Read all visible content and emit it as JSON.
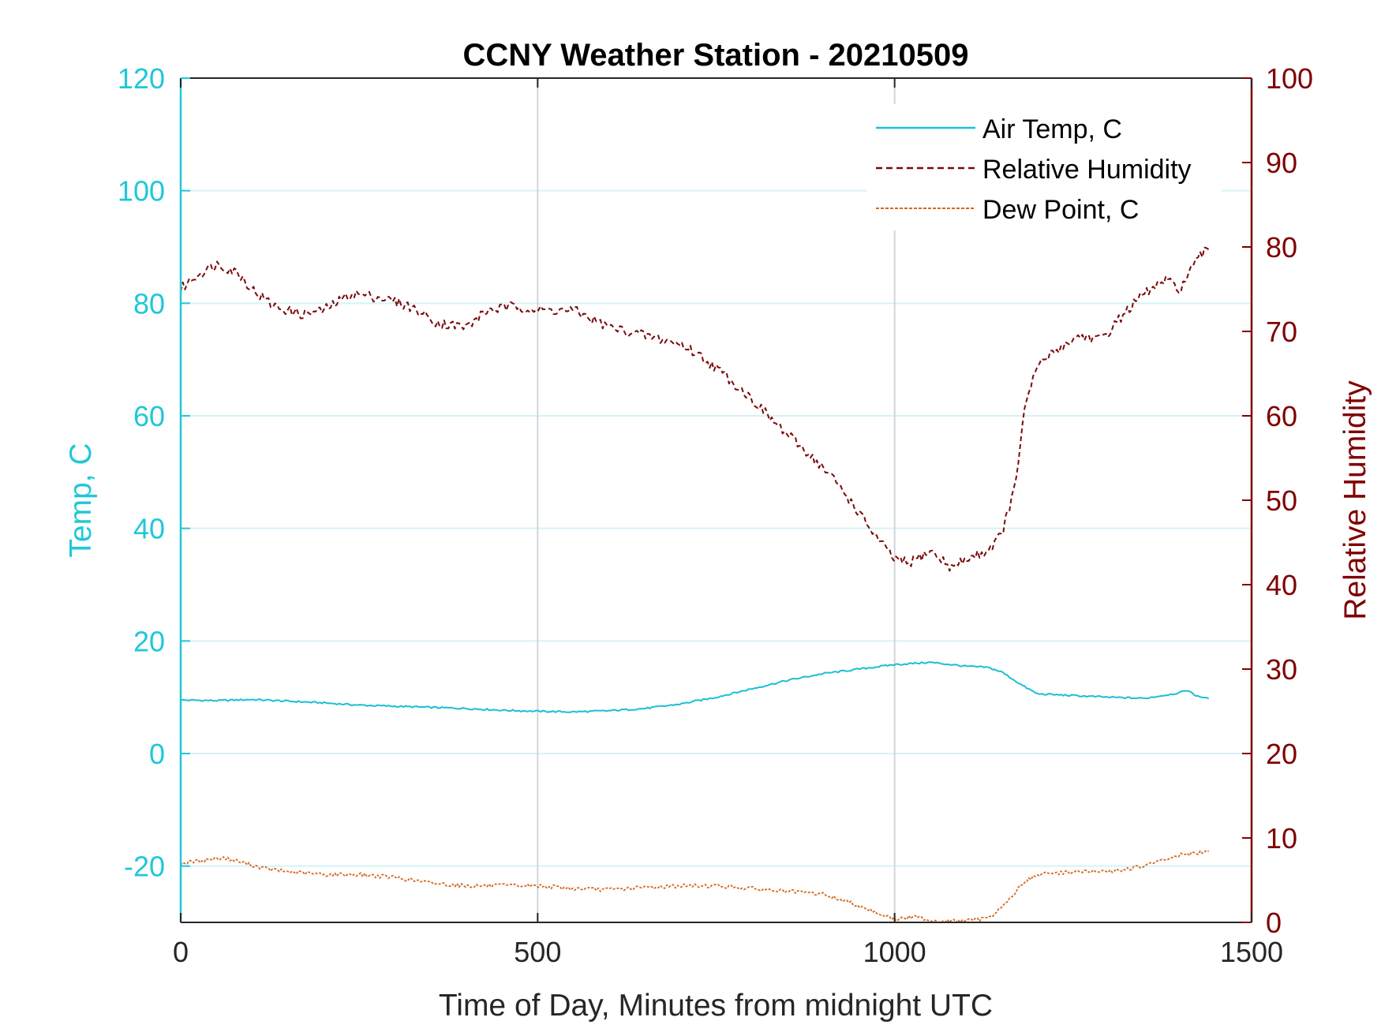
{
  "chart_data": {
    "type": "line",
    "title": "CCNY Weather Station - 20210509",
    "xlabel": "Time of Day, Minutes from midnight UTC",
    "ylabel_left": "Temp, C",
    "ylabel_right": "Relative Humidity",
    "xlim": [
      0,
      1500
    ],
    "ylim_left": [
      -30,
      120
    ],
    "ylim_right": [
      0,
      100
    ],
    "xticks": [
      "0",
      "500",
      "1000",
      "1500"
    ],
    "yticks_left": [
      "-20",
      "0",
      "20",
      "40",
      "60",
      "80",
      "100",
      "120"
    ],
    "yticks_right": [
      "0",
      "10",
      "20",
      "30",
      "40",
      "50",
      "60",
      "70",
      "80",
      "90",
      "100"
    ],
    "grid": true,
    "legend_position": "top-right",
    "colors": {
      "left_axis": "#1ec8d8",
      "right_axis": "#800000",
      "air_temp": "#1bbfd4",
      "relative_humidity": "#7a0a0a",
      "dew_point": "#d9651e",
      "grid_h": "#d5f3f7",
      "grid_v": "#cfd6de"
    },
    "series": [
      {
        "name": "Air Temp, C",
        "axis": "left",
        "style": "solid",
        "x": [
          0,
          50,
          100,
          150,
          200,
          250,
          300,
          350,
          400,
          450,
          500,
          550,
          600,
          650,
          700,
          750,
          800,
          850,
          900,
          950,
          1000,
          1050,
          1100,
          1130,
          1150,
          1180,
          1200,
          1250,
          1300,
          1350,
          1380,
          1400,
          1410,
          1420,
          1440
        ],
        "y": [
          9.5,
          9.4,
          9.6,
          9.3,
          9.0,
          8.6,
          8.4,
          8.2,
          8.0,
          7.7,
          7.5,
          7.4,
          7.6,
          8.0,
          8.8,
          10.0,
          11.5,
          13.0,
          14.2,
          15.0,
          15.8,
          16.2,
          15.5,
          15.3,
          14.5,
          12.0,
          10.6,
          10.3,
          10.0,
          9.8,
          10.4,
          10.8,
          11.3,
          10.4,
          9.7
        ]
      },
      {
        "name": "Relative Humidity",
        "axis": "right",
        "style": "dashed",
        "x": [
          0,
          20,
          50,
          80,
          100,
          130,
          170,
          200,
          240,
          280,
          320,
          360,
          400,
          430,
          470,
          500,
          550,
          600,
          650,
          700,
          730,
          760,
          800,
          840,
          880,
          920,
          950,
          980,
          1000,
          1020,
          1050,
          1080,
          1100,
          1130,
          1150,
          1170,
          1180,
          1200,
          1230,
          1260,
          1290,
          1320,
          1350,
          1380,
          1400,
          1420,
          1440
        ],
        "y": [
          75,
          76.5,
          78,
          77,
          75,
          73,
          72,
          72.5,
          74.5,
          74,
          73,
          71,
          70.5,
          72.5,
          73,
          72.5,
          72.5,
          70.5,
          69.5,
          68.5,
          67,
          65,
          62,
          58.5,
          55.5,
          52,
          48.5,
          45,
          43,
          42.5,
          44,
          42,
          43,
          44,
          46,
          52,
          60,
          66,
          68,
          69.5,
          69,
          72,
          74.5,
          76,
          75,
          78,
          80
        ]
      },
      {
        "name": "Dew Point, C",
        "axis": "left",
        "style": "dotted",
        "x": [
          0,
          30,
          60,
          90,
          120,
          150,
          200,
          250,
          300,
          350,
          400,
          450,
          500,
          550,
          600,
          650,
          700,
          750,
          800,
          850,
          900,
          950,
          980,
          1000,
          1030,
          1060,
          1090,
          1120,
          1140,
          1160,
          1180,
          1200,
          1250,
          1300,
          1350,
          1400,
          1440
        ],
        "y": [
          -19.5,
          -19,
          -18.5,
          -19.5,
          -20.5,
          -21,
          -21.5,
          -21.5,
          -22,
          -23,
          -23.5,
          -23.5,
          -23.5,
          -24,
          -24.2,
          -23.8,
          -23.5,
          -23.5,
          -24,
          -24.5,
          -25,
          -27,
          -28.5,
          -29.5,
          -29,
          -29.8,
          -29.8,
          -29.5,
          -28.5,
          -26,
          -23,
          -21.5,
          -21,
          -21,
          -20,
          -18,
          -17.5
        ]
      }
    ]
  }
}
